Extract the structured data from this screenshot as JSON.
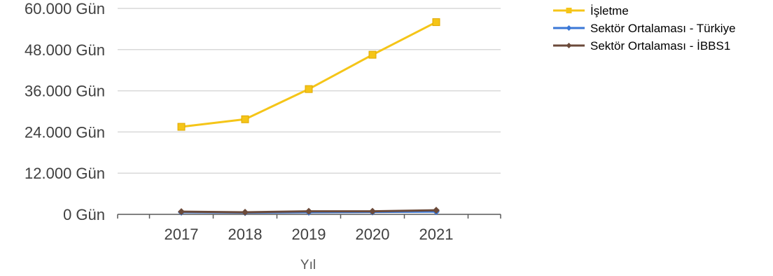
{
  "chart_data": {
    "type": "line",
    "title": "",
    "xlabel": "Yıl",
    "ylabel": "",
    "x": [
      "2017",
      "2018",
      "2019",
      "2020",
      "2021"
    ],
    "ylim": [
      0,
      60000
    ],
    "y_ticks": [
      0,
      12000,
      24000,
      36000,
      48000,
      60000
    ],
    "y_tick_labels": [
      "0 Gün",
      "12.000 Gün",
      "24.000 Gün",
      "36.000 Gün",
      "48.000 Gün",
      "60.000 Gün"
    ],
    "grid": true,
    "legend_position": "top-right",
    "series": [
      {
        "name": "İşletme",
        "color": "#F5C518",
        "marker": "square",
        "values": [
          25500,
          27700,
          36500,
          46500,
          56000
        ]
      },
      {
        "name": "Sektör Ortalaması - Türkiye",
        "color": "#3A77D6",
        "marker": "diamond",
        "values": [
          600,
          500,
          600,
          700,
          800
        ]
      },
      {
        "name": "Sektör Ortalaması - İBBS1",
        "color": "#6B4A3A",
        "marker": "diamond",
        "values": [
          800,
          600,
          900,
          900,
          1200
        ]
      }
    ]
  }
}
